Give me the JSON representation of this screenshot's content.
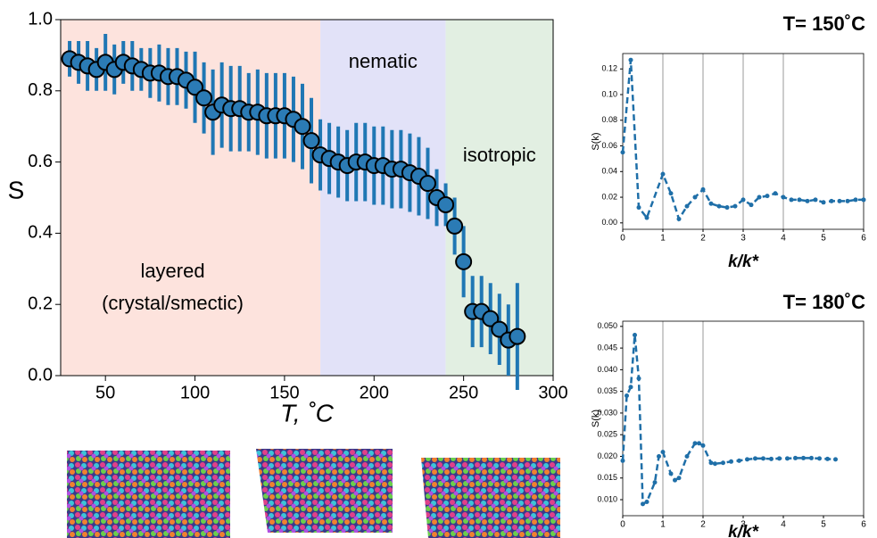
{
  "chart_data": [
    {
      "type": "scatter",
      "xlabel": "T, ˚C",
      "ylabel": "S",
      "xlim": [
        25,
        300
      ],
      "ylim": [
        0,
        1
      ],
      "xticks": [
        50,
        100,
        150,
        200,
        250,
        300
      ],
      "yticks": [
        {
          "value": 0,
          "label": "0.0"
        },
        0.2,
        0.4,
        0.6,
        0.8,
        {
          "value": 1,
          "label": "1.0"
        }
      ],
      "regions": [
        {
          "label": [
            "layered",
            "(crystal/smectic)"
          ],
          "start": 25,
          "end": 170,
          "color": "#fde3dd"
        },
        {
          "label": [
            "nematic"
          ],
          "start": 170,
          "end": 240,
          "color": "#e2e2f8"
        },
        {
          "label": [
            "isotropic"
          ],
          "start": 240,
          "end": 300,
          "color": "#e2efe2"
        }
      ],
      "color": "#2b7bb5",
      "x": [
        30,
        35,
        40,
        45,
        50,
        55,
        60,
        65,
        70,
        75,
        80,
        85,
        90,
        95,
        100,
        105,
        110,
        115,
        120,
        125,
        130,
        135,
        140,
        145,
        150,
        155,
        160,
        165,
        170,
        175,
        180,
        185,
        190,
        195,
        200,
        205,
        210,
        215,
        220,
        225,
        230,
        235,
        240,
        245,
        250,
        255,
        260,
        265,
        270,
        275,
        280
      ],
      "values": [
        0.89,
        0.88,
        0.87,
        0.86,
        0.88,
        0.86,
        0.88,
        0.87,
        0.86,
        0.85,
        0.85,
        0.84,
        0.84,
        0.83,
        0.81,
        0.78,
        0.74,
        0.76,
        0.75,
        0.75,
        0.74,
        0.74,
        0.73,
        0.73,
        0.73,
        0.72,
        0.7,
        0.66,
        0.62,
        0.61,
        0.6,
        0.59,
        0.6,
        0.6,
        0.59,
        0.59,
        0.58,
        0.58,
        0.57,
        0.56,
        0.54,
        0.5,
        0.48,
        0.42,
        0.32,
        0.18,
        0.18,
        0.16,
        0.13,
        0.1,
        0.11
      ],
      "errors": [
        0.05,
        0.06,
        0.07,
        0.06,
        0.08,
        0.07,
        0.06,
        0.07,
        0.06,
        0.07,
        0.08,
        0.08,
        0.08,
        0.08,
        0.1,
        0.1,
        0.12,
        0.12,
        0.12,
        0.12,
        0.11,
        0.12,
        0.12,
        0.12,
        0.12,
        0.12,
        0.12,
        0.12,
        0.1,
        0.1,
        0.1,
        0.1,
        0.11,
        0.11,
        0.11,
        0.11,
        0.11,
        0.11,
        0.11,
        0.11,
        0.1,
        0.08,
        0.06,
        0.08,
        0.1,
        0.1,
        0.1,
        0.1,
        0.1,
        0.1,
        0.15
      ]
    },
    {
      "type": "line",
      "title": "T= 150˚C",
      "xlabel": "k/k*",
      "ylabel": "S(k)",
      "xlim": [
        0,
        6
      ],
      "ylim": [
        -0.005,
        0.132
      ],
      "xticks": [
        0,
        1,
        2,
        3,
        4,
        5,
        6
      ],
      "yticks": [
        {
          "value": 0,
          "label": "0.00"
        },
        0.02,
        0.04,
        0.06,
        0.08,
        {
          "value": 0.1,
          "label": "0.10"
        },
        0.12
      ],
      "vlines": [
        1,
        2,
        3,
        4
      ],
      "color": "#1f6fa8",
      "x": [
        0,
        0.2,
        0.4,
        0.6,
        1.0,
        1.2,
        1.4,
        1.6,
        1.8,
        2.0,
        2.2,
        2.4,
        2.6,
        2.8,
        3.0,
        3.2,
        3.4,
        3.6,
        3.8,
        4.0,
        4.2,
        4.4,
        4.6,
        4.8,
        5.0,
        5.2,
        5.4,
        5.6,
        5.8,
        6.0
      ],
      "values": [
        0.055,
        0.127,
        0.012,
        0.004,
        0.038,
        0.023,
        0.003,
        0.013,
        0.02,
        0.026,
        0.015,
        0.013,
        0.012,
        0.013,
        0.018,
        0.014,
        0.02,
        0.021,
        0.023,
        0.02,
        0.018,
        0.018,
        0.017,
        0.018,
        0.016,
        0.017,
        0.017,
        0.017,
        0.018,
        0.018
      ]
    },
    {
      "type": "line",
      "title": "T= 180˚C",
      "xlabel": "k/k*",
      "ylabel": "S(k)",
      "xlim": [
        0,
        6
      ],
      "ylim": [
        0.0063,
        0.0512
      ],
      "xticks": [
        0,
        1,
        2,
        3,
        4,
        5,
        6
      ],
      "yticks": [
        {
          "value": 0.01,
          "label": "0.010"
        },
        0.015,
        {
          "value": 0.02,
          "label": "0.020"
        },
        0.025,
        {
          "value": 0.03,
          "label": "0.030"
        },
        0.035,
        {
          "value": 0.04,
          "label": "0.040"
        },
        0.045,
        {
          "value": 0.05,
          "label": "0.050"
        }
      ],
      "vlines": [
        1,
        2
      ],
      "color": "#1f6fa8",
      "x": [
        0,
        0.1,
        0.2,
        0.3,
        0.4,
        0.5,
        0.6,
        0.8,
        0.9,
        1.0,
        1.2,
        1.3,
        1.4,
        1.6,
        1.8,
        1.9,
        2.0,
        2.2,
        2.3,
        2.5,
        2.7,
        2.9,
        3.1,
        3.3,
        3.5,
        3.7,
        3.9,
        4.1,
        4.3,
        4.5,
        4.7,
        4.9,
        5.1,
        5.3
      ],
      "values": [
        0.019,
        0.034,
        0.036,
        0.048,
        0.038,
        0.009,
        0.0095,
        0.014,
        0.02,
        0.021,
        0.016,
        0.0145,
        0.015,
        0.02,
        0.023,
        0.023,
        0.0225,
        0.0185,
        0.0183,
        0.0185,
        0.0188,
        0.019,
        0.0193,
        0.0195,
        0.0195,
        0.0194,
        0.0195,
        0.0195,
        0.0196,
        0.0196,
        0.0196,
        0.0195,
        0.0194,
        0.0193
      ]
    }
  ]
}
